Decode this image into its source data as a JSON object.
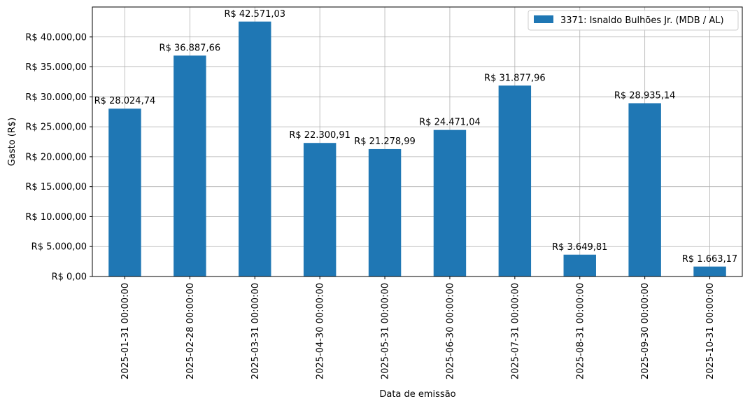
{
  "chart_data": {
    "type": "bar",
    "xlabel": "Data de emissão",
    "ylabel": "Gasto (R$)",
    "ylim": [
      0,
      45000
    ],
    "grid": true,
    "legend_position": "top-right",
    "y_ticks": [
      0,
      5000,
      10000,
      15000,
      20000,
      25000,
      30000,
      35000,
      40000
    ],
    "y_tick_labels": [
      "R$ 0,00",
      "R$ 5.000,00",
      "R$ 10.000,00",
      "R$ 15.000,00",
      "R$ 20.000,00",
      "R$ 25.000,00",
      "R$ 30.000,00",
      "R$ 35.000,00",
      "R$ 40.000,00"
    ],
    "categories": [
      "2025-01-31 00:00:00",
      "2025-02-28 00:00:00",
      "2025-03-31 00:00:00",
      "2025-04-30 00:00:00",
      "2025-05-31 00:00:00",
      "2025-06-30 00:00:00",
      "2025-07-31 00:00:00",
      "2025-08-31 00:00:00",
      "2025-09-30 00:00:00",
      "2025-10-31 00:00:00"
    ],
    "series": [
      {
        "name": "3371: Isnaldo Bulhões Jr. (MDB / AL)",
        "color": "#1f77b4",
        "values": [
          28024.74,
          36887.66,
          42571.03,
          22300.91,
          21278.99,
          24471.04,
          31877.96,
          3649.81,
          28935.14,
          1663.17
        ],
        "labels": [
          "R$ 28.024,74",
          "R$ 36.887,66",
          "R$ 42.571,03",
          "R$ 22.300,91",
          "R$ 21.278,99",
          "R$ 24.471,04",
          "R$ 31.877,96",
          "R$ 3.649,81",
          "R$ 28.935,14",
          "R$ 1.663,17"
        ]
      }
    ]
  }
}
